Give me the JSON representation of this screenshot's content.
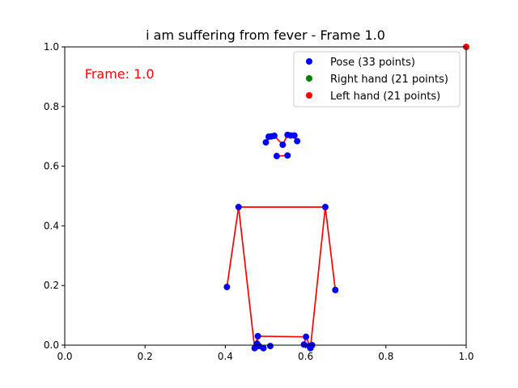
{
  "chart_data": {
    "type": "scatter",
    "title": "i am suffering from fever - Frame 1.0",
    "xlabel": "",
    "ylabel": "",
    "xlim": [
      0.0,
      1.0
    ],
    "ylim": [
      0.0,
      1.0
    ],
    "x_ticks": [
      "0.0",
      "0.2",
      "0.4",
      "0.6",
      "0.8",
      "1.0"
    ],
    "y_ticks": [
      "0.0",
      "0.2",
      "0.4",
      "0.6",
      "0.8",
      "1.0"
    ],
    "grid": false,
    "legend_position": "top-right",
    "annotation": {
      "text": "Frame: 1.0",
      "x": 0.05,
      "y": 0.91,
      "color": "#ff0000"
    },
    "series": [
      {
        "name": "Pose (33 points)",
        "color": "#0000ff",
        "points": [
          [
            0.543,
            0.672
          ],
          [
            0.522,
            0.702
          ],
          [
            0.515,
            0.7
          ],
          [
            0.508,
            0.699
          ],
          [
            0.555,
            0.705
          ],
          [
            0.563,
            0.703
          ],
          [
            0.572,
            0.703
          ],
          [
            0.501,
            0.68
          ],
          [
            0.579,
            0.684
          ],
          [
            0.528,
            0.634
          ],
          [
            0.555,
            0.636
          ],
          [
            0.433,
            0.463
          ],
          [
            0.649,
            0.463
          ],
          [
            0.404,
            0.195
          ],
          [
            0.674,
            0.185
          ],
          [
            0.481,
            0.03
          ],
          [
            0.601,
            0.028
          ],
          [
            0.479,
            0.005
          ],
          [
            0.484,
            -0.003
          ],
          [
            0.512,
            -0.003
          ],
          [
            0.596,
            0.002
          ],
          [
            0.609,
            -0.003
          ],
          [
            0.616,
            0.0
          ],
          [
            0.473,
            -0.01
          ],
          [
            0.495,
            -0.01
          ],
          [
            0.612,
            -0.01
          ]
        ],
        "connections": [
          [
            0,
            1
          ],
          [
            1,
            2
          ],
          [
            2,
            3
          ],
          [
            3,
            7
          ],
          [
            0,
            4
          ],
          [
            4,
            5
          ],
          [
            5,
            6
          ],
          [
            6,
            8
          ],
          [
            9,
            10
          ],
          [
            11,
            12
          ],
          [
            11,
            13
          ],
          [
            12,
            14
          ],
          [
            11,
            23
          ],
          [
            12,
            25
          ],
          [
            23,
            15
          ],
          [
            15,
            16
          ],
          [
            16,
            25
          ],
          [
            15,
            17
          ],
          [
            16,
            20
          ]
        ]
      },
      {
        "name": "Right hand (21 points)",
        "color": "#008000",
        "points": []
      },
      {
        "name": "Left hand (21 points)",
        "color": "#ff0000",
        "points": [
          [
            1.0,
            1.0
          ]
        ]
      }
    ],
    "connection_color": "#ff0000"
  }
}
